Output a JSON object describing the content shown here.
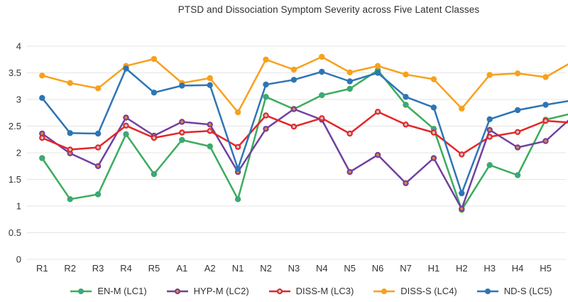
{
  "title": "PTSD and Dissociation Symptom Severity across Five Latent Classes",
  "chart_data": {
    "type": "line",
    "title": "PTSD and Dissociation Symptom Severity across Five Latent Classes",
    "categories": [
      "R1",
      "R2",
      "R3",
      "R4",
      "R5",
      "A1",
      "A2",
      "N1",
      "N2",
      "N3",
      "N4",
      "N5",
      "N6",
      "N7",
      "H1",
      "H2",
      "H3",
      "H4",
      "H5"
    ],
    "series": [
      {
        "name": "EN-M (LC1)",
        "line_color": "#3BAC5C",
        "marker_fill": "#3E9FAC",
        "values": [
          1.9,
          1.13,
          1.22,
          2.35,
          1.6,
          2.24,
          2.12,
          1.13,
          3.05,
          2.82,
          3.08,
          3.2,
          3.55,
          2.9,
          2.45,
          0.93,
          1.77,
          1.58,
          2.62
        ],
        "right_edge_value": 2.72
      },
      {
        "name": "HYP-M (LC2)",
        "line_color": "#71409E",
        "marker_fill": "#E8832A",
        "values": [
          2.36,
          1.99,
          1.75,
          2.66,
          2.32,
          2.58,
          2.53,
          1.64,
          2.45,
          2.82,
          2.62,
          1.64,
          1.96,
          1.43,
          1.9,
          0.95,
          2.43,
          2.1,
          2.22
        ],
        "right_edge_value": 2.6
      },
      {
        "name": "DISS-M (LC3)",
        "line_color": "#E42528",
        "marker_fill": "#C6C9CC",
        "values": [
          2.28,
          2.06,
          2.1,
          2.51,
          2.28,
          2.38,
          2.41,
          2.11,
          2.7,
          2.49,
          2.65,
          2.36,
          2.77,
          2.53,
          2.38,
          1.97,
          2.3,
          2.39,
          2.6
        ],
        "right_edge_value": 2.57
      },
      {
        "name": "DISS-S (LC4)",
        "line_color": "#F7A11D",
        "marker_fill": "#F7A11D",
        "values": [
          3.45,
          3.31,
          3.21,
          3.63,
          3.76,
          3.31,
          3.4,
          2.76,
          3.75,
          3.56,
          3.8,
          3.51,
          3.63,
          3.47,
          3.38,
          2.83,
          3.46,
          3.49,
          3.42
        ],
        "right_edge_value": 3.66
      },
      {
        "name": "ND-S (LC5)",
        "line_color": "#2E75B6",
        "marker_fill": "#2E75B6",
        "values": [
          3.03,
          2.37,
          2.36,
          3.58,
          3.13,
          3.26,
          3.27,
          1.7,
          3.28,
          3.37,
          3.52,
          3.34,
          3.5,
          3.05,
          2.85,
          1.24,
          2.63,
          2.8,
          2.9
        ],
        "right_edge_value": 2.97
      }
    ],
    "ylim": [
      0,
      4
    ],
    "yticks": [
      4,
      3.5,
      3,
      2.5,
      2,
      1.5,
      1,
      0.5,
      0
    ],
    "ytick_labels": [
      "4",
      "3.5",
      "3",
      "2.5",
      "2",
      "1.5",
      "1",
      "0.5",
      "0"
    ],
    "grid": true,
    "legend_position": "bottom",
    "grid_color": "#E5E5E5",
    "text_color": "#333333"
  }
}
